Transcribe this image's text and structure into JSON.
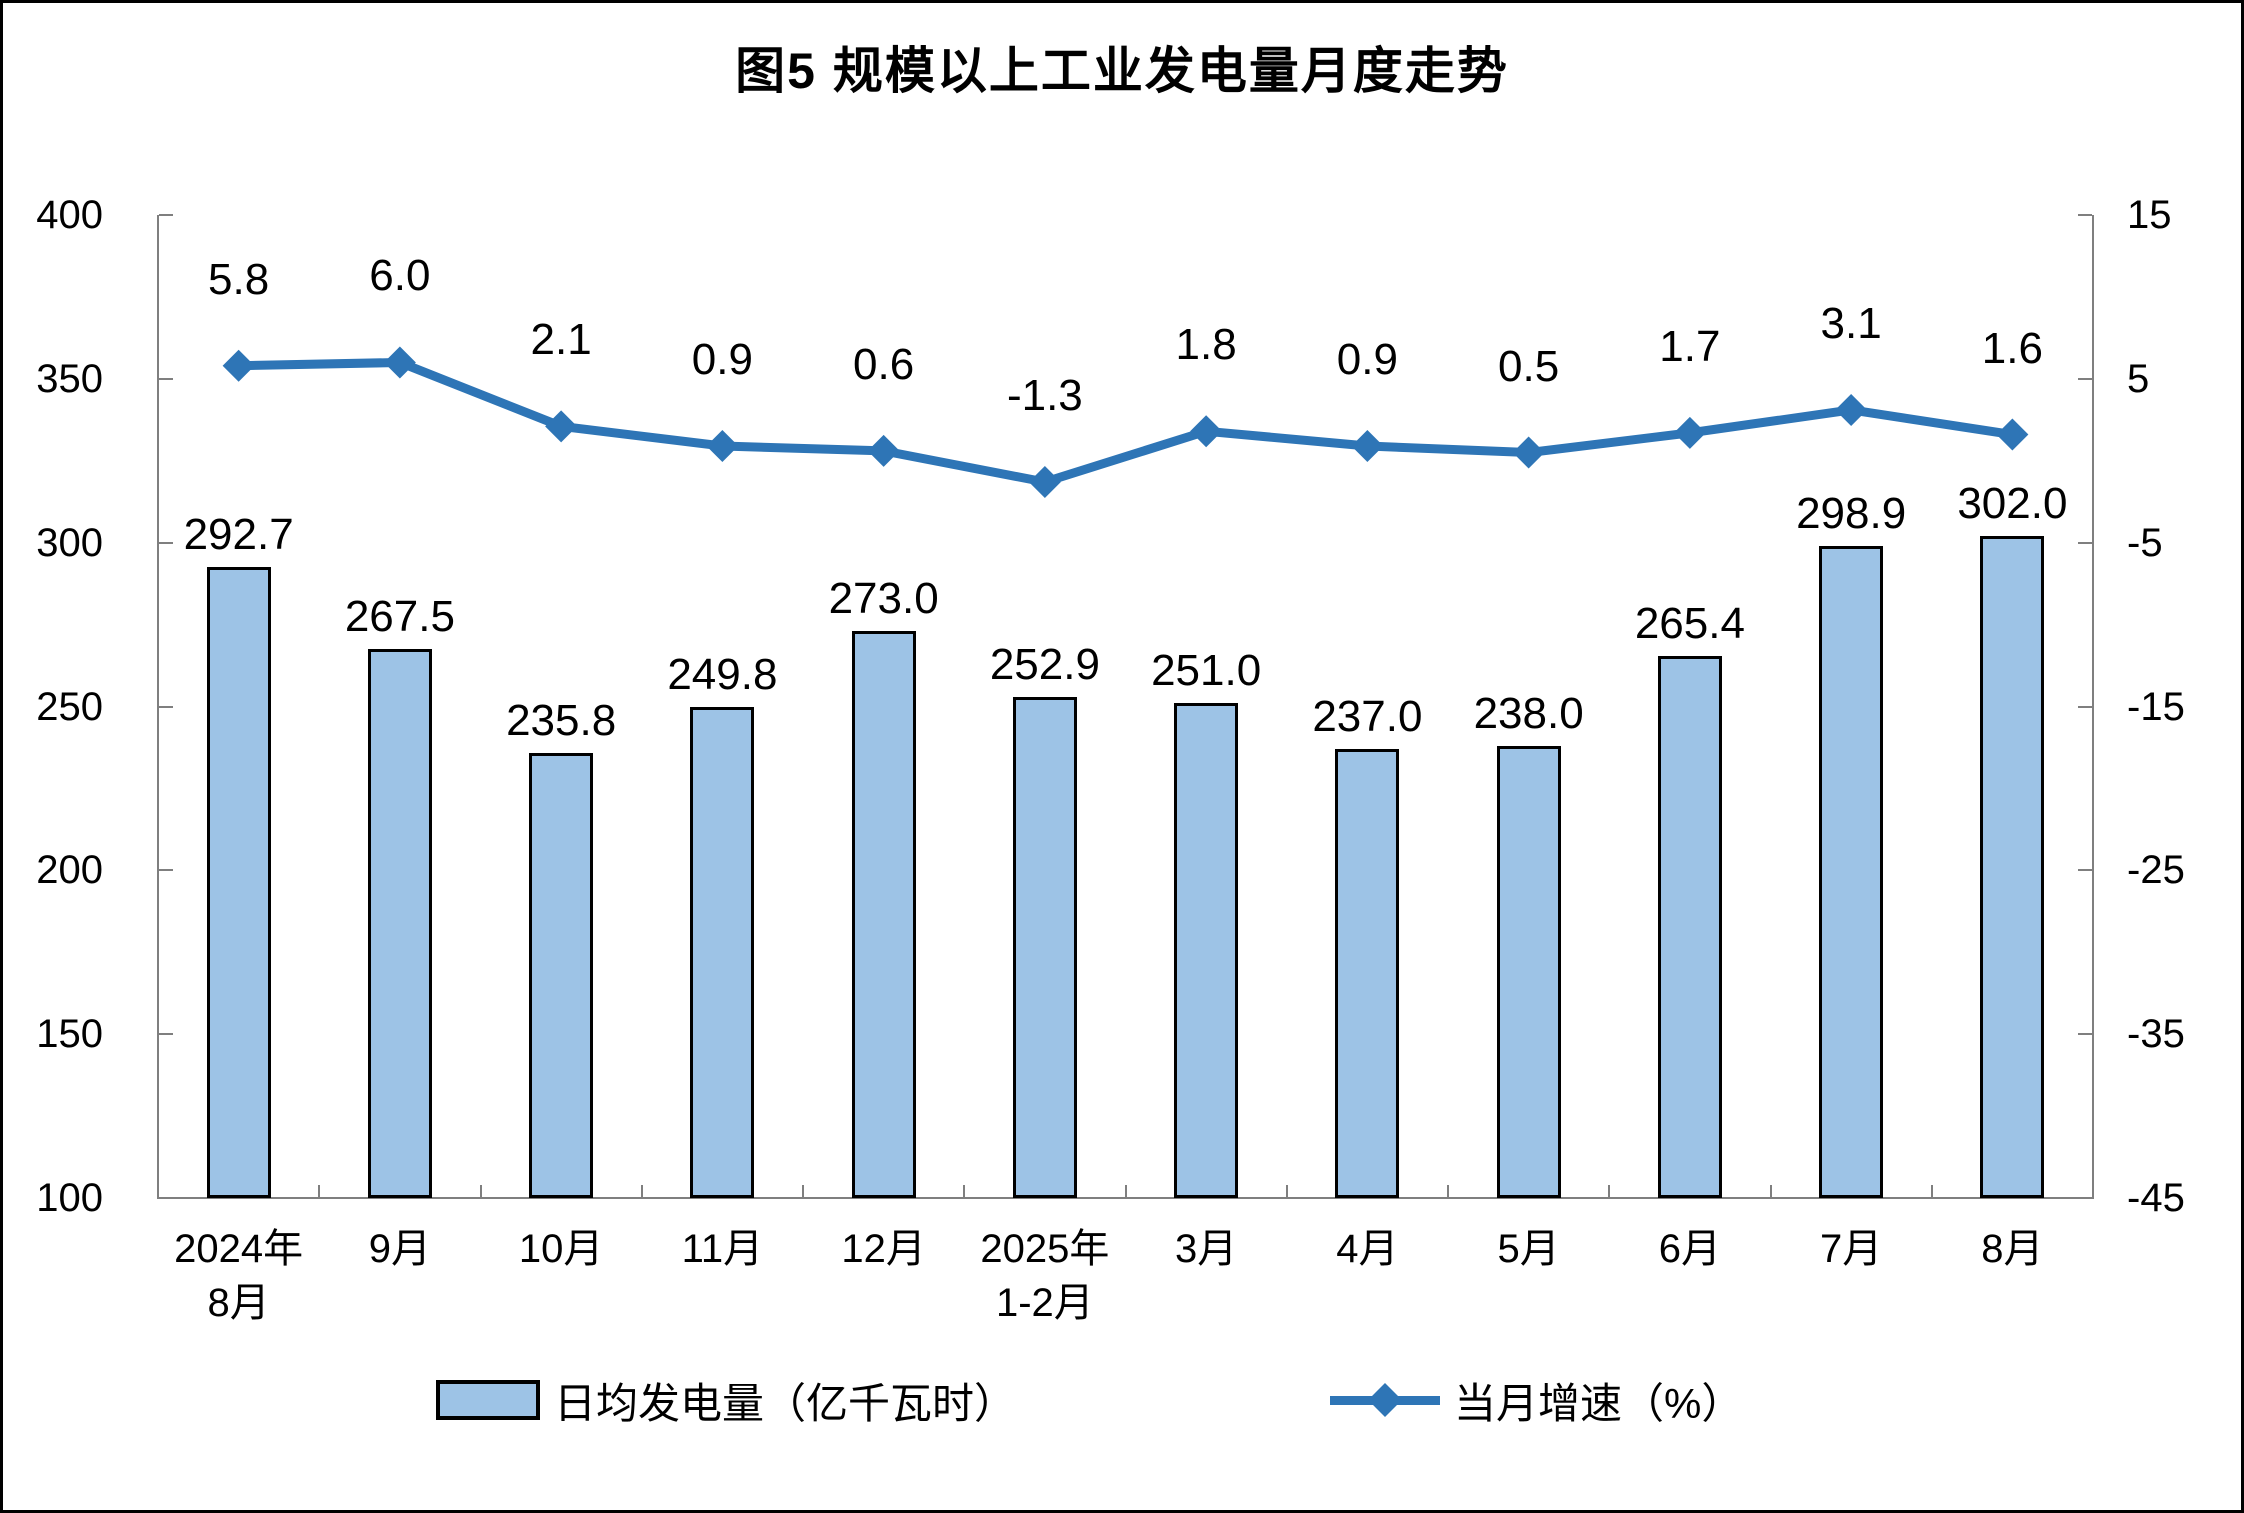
{
  "title": "图5 规模以上工业发电量月度走势",
  "colors": {
    "bar_fill": "#9DC3E6",
    "bar_border": "#000000",
    "line": "#2E75B6",
    "axis": "#7F7F7F",
    "text": "#000000"
  },
  "legend": {
    "bar_label": "日均发电量（亿千瓦时）",
    "line_label": "当月增速（%）"
  },
  "chart_data": {
    "type": "combo",
    "title": "图5 规模以上工业发电量月度走势",
    "categories": [
      "2024年\n8月",
      "9月",
      "10月",
      "11月",
      "12月",
      "2025年\n1-2月",
      "3月",
      "4月",
      "5月",
      "6月",
      "7月",
      "8月"
    ],
    "series": [
      {
        "name": "日均发电量（亿千瓦时）",
        "type": "bar",
        "axis": "left",
        "decimals": 1,
        "values": [
          292.7,
          267.5,
          235.8,
          249.8,
          273.0,
          252.9,
          251.0,
          237.0,
          238.0,
          265.4,
          298.9,
          302.0
        ]
      },
      {
        "name": "当月增速（%）",
        "type": "line",
        "axis": "right",
        "decimals": 1,
        "values": [
          5.8,
          6.0,
          2.1,
          0.9,
          0.6,
          -1.3,
          1.8,
          0.9,
          0.5,
          1.7,
          3.1,
          1.6
        ]
      }
    ],
    "left_axis": {
      "min": 100,
      "max": 400,
      "ticks": [
        400,
        350,
        300,
        250,
        200,
        150,
        100
      ]
    },
    "right_axis": {
      "min": -45,
      "max": 15,
      "ticks": [
        15,
        5,
        -5,
        -15,
        -25,
        -35,
        -45
      ]
    },
    "grid": false,
    "legend_position": "bottom",
    "data_labels": true
  }
}
